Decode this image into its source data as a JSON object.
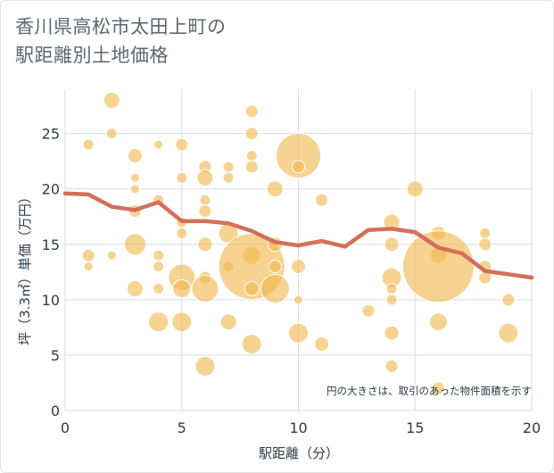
{
  "title_lines": "香川県高松市太田上町の\n駅距離別土地価格",
  "chart_data": {
    "type": "scatter",
    "xlabel": "駅距離（分）",
    "ylabel": "坪（3.3㎡）単価（万円）",
    "xlim": [
      0,
      20
    ],
    "ylim": [
      0,
      29
    ],
    "xticks": [
      0,
      5,
      10,
      15,
      20
    ],
    "yticks": [
      0,
      5,
      10,
      15,
      20,
      25
    ],
    "grid": true,
    "note": "円の大きさは、取引のあった物件面積を示す",
    "bubble_color": "#f2b84e",
    "line_color": "#d26f5a",
    "points": [
      {
        "x": 1,
        "y": 24,
        "r": 6
      },
      {
        "x": 1,
        "y": 14,
        "r": 7
      },
      {
        "x": 1,
        "y": 13,
        "r": 5
      },
      {
        "x": 2,
        "y": 28,
        "r": 9
      },
      {
        "x": 2,
        "y": 25,
        "r": 6
      },
      {
        "x": 2,
        "y": 14,
        "r": 5
      },
      {
        "x": 3,
        "y": 23,
        "r": 8
      },
      {
        "x": 3,
        "y": 21,
        "r": 5
      },
      {
        "x": 3,
        "y": 20,
        "r": 5
      },
      {
        "x": 3,
        "y": 18,
        "r": 7
      },
      {
        "x": 3,
        "y": 15,
        "r": 12
      },
      {
        "x": 3,
        "y": 11,
        "r": 9
      },
      {
        "x": 4,
        "y": 24,
        "r": 5
      },
      {
        "x": 4,
        "y": 19,
        "r": 6
      },
      {
        "x": 4,
        "y": 14,
        "r": 6
      },
      {
        "x": 4,
        "y": 13,
        "r": 6
      },
      {
        "x": 4,
        "y": 11,
        "r": 6
      },
      {
        "x": 4,
        "y": 8,
        "r": 11
      },
      {
        "x": 5,
        "y": 24,
        "r": 7
      },
      {
        "x": 5,
        "y": 21,
        "r": 6
      },
      {
        "x": 5,
        "y": 17,
        "r": 6
      },
      {
        "x": 5,
        "y": 16,
        "r": 6
      },
      {
        "x": 5,
        "y": 12,
        "r": 15
      },
      {
        "x": 5,
        "y": 11,
        "r": 10
      },
      {
        "x": 5,
        "y": 8,
        "r": 11
      },
      {
        "x": 6,
        "y": 22,
        "r": 7
      },
      {
        "x": 6,
        "y": 21,
        "r": 9
      },
      {
        "x": 6,
        "y": 19,
        "r": 6
      },
      {
        "x": 6,
        "y": 18,
        "r": 7
      },
      {
        "x": 6,
        "y": 15,
        "r": 8
      },
      {
        "x": 6,
        "y": 12,
        "r": 7
      },
      {
        "x": 6,
        "y": 11,
        "r": 15
      },
      {
        "x": 6,
        "y": 4,
        "r": 11
      },
      {
        "x": 7,
        "y": 22,
        "r": 6
      },
      {
        "x": 7,
        "y": 21,
        "r": 6
      },
      {
        "x": 7,
        "y": 16,
        "r": 11
      },
      {
        "x": 7,
        "y": 13,
        "r": 6
      },
      {
        "x": 7,
        "y": 8,
        "r": 9
      },
      {
        "x": 8,
        "y": 27,
        "r": 7
      },
      {
        "x": 8,
        "y": 25,
        "r": 7
      },
      {
        "x": 8,
        "y": 23,
        "r": 6
      },
      {
        "x": 8,
        "y": 22,
        "r": 7
      },
      {
        "x": 8,
        "y": 14,
        "r": 10
      },
      {
        "x": 8,
        "y": 13,
        "r": 37
      },
      {
        "x": 8,
        "y": 11,
        "r": 8
      },
      {
        "x": 8,
        "y": 6,
        "r": 11
      },
      {
        "x": 9,
        "y": 20,
        "r": 9
      },
      {
        "x": 9,
        "y": 15,
        "r": 8
      },
      {
        "x": 9,
        "y": 13,
        "r": 7
      },
      {
        "x": 9,
        "y": 11,
        "r": 16
      },
      {
        "x": 10,
        "y": 23,
        "r": 25
      },
      {
        "x": 10,
        "y": 22,
        "r": 7
      },
      {
        "x": 10,
        "y": 13,
        "r": 8
      },
      {
        "x": 10,
        "y": 10,
        "r": 5
      },
      {
        "x": 10,
        "y": 7,
        "r": 11
      },
      {
        "x": 11,
        "y": 19,
        "r": 7
      },
      {
        "x": 11,
        "y": 6,
        "r": 8
      },
      {
        "x": 13,
        "y": 9,
        "r": 7
      },
      {
        "x": 14,
        "y": 17,
        "r": 9
      },
      {
        "x": 14,
        "y": 15,
        "r": 8
      },
      {
        "x": 14,
        "y": 12,
        "r": 11
      },
      {
        "x": 14,
        "y": 11,
        "r": 6
      },
      {
        "x": 14,
        "y": 10,
        "r": 6
      },
      {
        "x": 14,
        "y": 7,
        "r": 8
      },
      {
        "x": 14,
        "y": 4,
        "r": 7
      },
      {
        "x": 15,
        "y": 20,
        "r": 9
      },
      {
        "x": 16,
        "y": 16,
        "r": 8
      },
      {
        "x": 16,
        "y": 14,
        "r": 9
      },
      {
        "x": 16,
        "y": 13,
        "r": 40
      },
      {
        "x": 16,
        "y": 8,
        "r": 10
      },
      {
        "x": 16,
        "y": 2,
        "r": 7
      },
      {
        "x": 18,
        "y": 16,
        "r": 6
      },
      {
        "x": 18,
        "y": 15,
        "r": 7
      },
      {
        "x": 18,
        "y": 13,
        "r": 7
      },
      {
        "x": 18,
        "y": 12,
        "r": 7
      },
      {
        "x": 19,
        "y": 10,
        "r": 7
      },
      {
        "x": 19,
        "y": 7,
        "r": 11
      }
    ],
    "trend": [
      {
        "x": 0,
        "y": 19.6
      },
      {
        "x": 1,
        "y": 19.5
      },
      {
        "x": 2,
        "y": 18.4
      },
      {
        "x": 3,
        "y": 18.1
      },
      {
        "x": 4,
        "y": 18.8
      },
      {
        "x": 5,
        "y": 17.1
      },
      {
        "x": 6,
        "y": 17.1
      },
      {
        "x": 7,
        "y": 16.9
      },
      {
        "x": 8,
        "y": 16.2
      },
      {
        "x": 9,
        "y": 15.2
      },
      {
        "x": 10,
        "y": 14.9
      },
      {
        "x": 11,
        "y": 15.3
      },
      {
        "x": 12,
        "y": 14.8
      },
      {
        "x": 13,
        "y": 16.3
      },
      {
        "x": 14,
        "y": 16.4
      },
      {
        "x": 15,
        "y": 16.1
      },
      {
        "x": 16,
        "y": 14.7
      },
      {
        "x": 17,
        "y": 14.2
      },
      {
        "x": 18,
        "y": 12.6
      },
      {
        "x": 19,
        "y": 12.3
      },
      {
        "x": 20,
        "y": 12.0
      }
    ]
  }
}
